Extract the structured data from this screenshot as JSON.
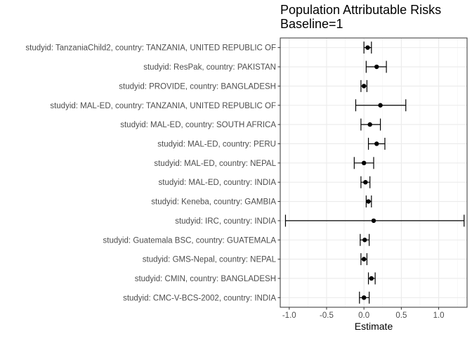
{
  "chart_data": {
    "type": "forest",
    "title": [
      "Population Attributable Risks",
      "Baseline=1"
    ],
    "xlabel": "Estimate",
    "ylabel": "",
    "xlim": [
      -1.12,
      1.38
    ],
    "xticks": [
      -1.0,
      -0.5,
      0.0,
      0.5,
      1.0
    ],
    "xtick_labels": [
      "-1.0",
      "-0.5",
      "0.0",
      "0.5",
      "1.0"
    ],
    "grid": true,
    "theme": "bw",
    "categories": [
      "studyid: TanzaniaChild2, country: TANZANIA, UNITED REPUBLIC OF",
      "studyid: ResPak, country: PAKISTAN",
      "studyid: PROVIDE, country: BANGLADESH",
      "studyid: MAL-ED, country: TANZANIA, UNITED REPUBLIC OF",
      "studyid: MAL-ED, country: SOUTH AFRICA",
      "studyid: MAL-ED, country: PERU",
      "studyid: MAL-ED, country: NEPAL",
      "studyid: MAL-ED, country: INDIA",
      "studyid: Keneba, country: GAMBIA",
      "studyid: IRC, country: INDIA",
      "studyid: Guatemala BSC, country: GUATEMALA",
      "studyid: GMS-Nepal, country: NEPAL",
      "studyid: CMIN, country: BANGLADESH",
      "studyid: CMC-V-BCS-2002, country: INDIA"
    ],
    "estimates": [
      0.05,
      0.17,
      0.0,
      0.22,
      0.08,
      0.17,
      0.0,
      0.02,
      0.06,
      0.13,
      0.01,
      0.0,
      0.1,
      0.0
    ],
    "lower": [
      0.0,
      0.03,
      -0.04,
      -0.11,
      -0.04,
      0.06,
      -0.13,
      -0.04,
      0.03,
      -1.05,
      -0.05,
      -0.04,
      0.06,
      -0.06
    ],
    "upper": [
      0.1,
      0.3,
      0.04,
      0.56,
      0.22,
      0.28,
      0.13,
      0.08,
      0.1,
      1.34,
      0.07,
      0.04,
      0.15,
      0.07
    ]
  }
}
